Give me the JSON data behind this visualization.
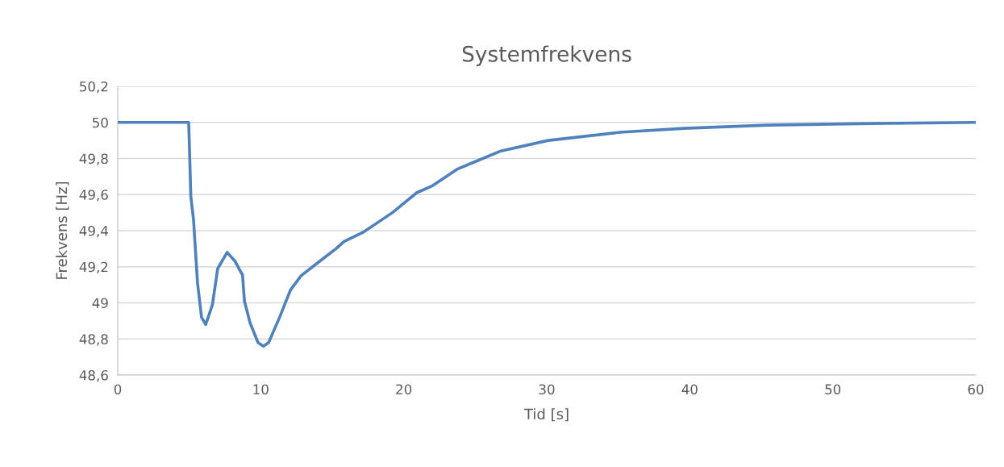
{
  "chart_data": {
    "type": "line",
    "title": "Systemfrekvens",
    "xlabel": "Tid [s]",
    "ylabel": "Frekvens [Hz]",
    "series": [
      {
        "color": "#4f81bd",
        "x": [
          0,
          4.96,
          5.0,
          5.11,
          5.3,
          5.58,
          5.86,
          6.15,
          6.62,
          6.99,
          7.65,
          8.21,
          8.68,
          8.72,
          8.86,
          9.25,
          9.81,
          10.19,
          10.55,
          11.32,
          12.07,
          12.82,
          13.95,
          15.26,
          15.83,
          17.14,
          19.21,
          20.9,
          22.03,
          23.72,
          25.22,
          26.73,
          30.1,
          35.1,
          39.6,
          45.45,
          52.7,
          60
        ],
        "values": [
          50.0,
          50.0,
          49.9,
          49.59,
          49.46,
          49.11,
          48.92,
          48.88,
          48.99,
          49.19,
          49.28,
          49.23,
          49.16,
          49.16,
          49.01,
          48.89,
          48.78,
          48.76,
          48.78,
          48.92,
          49.07,
          49.15,
          49.22,
          49.3,
          49.34,
          49.39,
          49.5,
          49.61,
          49.65,
          49.74,
          49.79,
          49.84,
          49.9,
          49.945,
          49.967,
          49.985,
          49.994,
          50.0
        ]
      }
    ],
    "xlim": [
      0,
      60
    ],
    "xticks": [
      0,
      10,
      20,
      30,
      40,
      50,
      60
    ],
    "ylim": [
      48.6,
      50.2
    ],
    "yticks": [
      {
        "value": 48.6,
        "label": "48,6"
      },
      {
        "value": 48.8,
        "label": "48,8"
      },
      49,
      {
        "value": 49.2,
        "label": "49,2"
      },
      {
        "value": 49.4,
        "label": "49,4"
      },
      {
        "value": 49.6,
        "label": "49,6"
      },
      {
        "value": 49.8,
        "label": "49,8"
      },
      50,
      {
        "value": 50.2,
        "label": "50,2"
      }
    ],
    "grid": "y",
    "legend": false,
    "marker": "none",
    "line_style": "solid"
  }
}
